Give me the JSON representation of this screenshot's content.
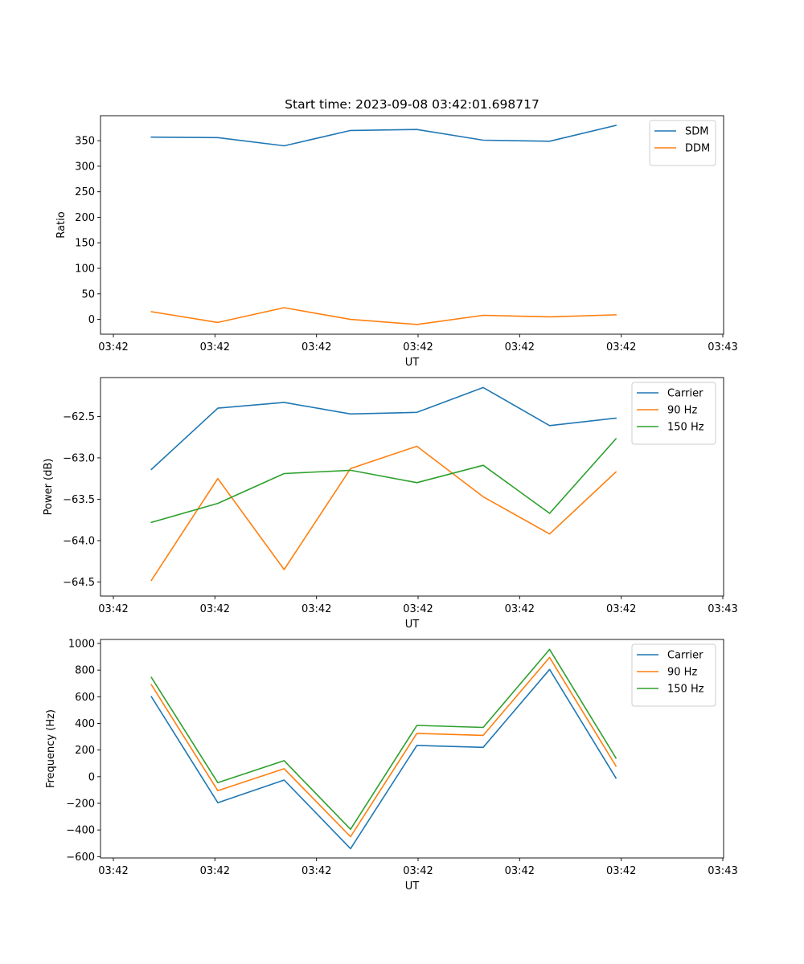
{
  "chart_data": [
    {
      "type": "line",
      "title": "Start time: 2023-09-08 03:42:01.698717",
      "xlabel": "UT",
      "ylabel": "Ratio",
      "xticks": [
        "03:42",
        "03:42",
        "03:42",
        "03:42",
        "03:42",
        "03:42",
        "03:43"
      ],
      "yticks": [
        "0",
        "50",
        "100",
        "150",
        "200",
        "250",
        "300",
        "350"
      ],
      "ylim": [
        -29,
        399
      ],
      "legend": "top-right",
      "x": [
        1,
        2,
        3,
        4,
        5,
        6,
        7,
        8
      ],
      "series": [
        {
          "name": "SDM",
          "color": "#1f77b4",
          "values": [
            357,
            356,
            340,
            370,
            372,
            351,
            349,
            380
          ]
        },
        {
          "name": "DDM",
          "color": "#ff7f0e",
          "values": [
            15,
            -6,
            23,
            0,
            -10,
            8,
            5,
            9
          ]
        }
      ]
    },
    {
      "type": "line",
      "title": "",
      "xlabel": "UT",
      "ylabel": "Power (dB)",
      "xticks": [
        "03:42",
        "03:42",
        "03:42",
        "03:42",
        "03:42",
        "03:42",
        "03:43"
      ],
      "yticks": [
        "−64.5",
        "−64.0",
        "−63.5",
        "−63.0",
        "−62.5"
      ],
      "ylim": [
        -64.67,
        -62.03
      ],
      "legend": "top-right",
      "x": [
        1,
        2,
        3,
        4,
        5,
        6,
        7,
        8
      ],
      "series": [
        {
          "name": "Carrier",
          "color": "#1f77b4",
          "values": [
            -63.14,
            -62.4,
            -62.33,
            -62.47,
            -62.45,
            -62.15,
            -62.61,
            -62.52
          ]
        },
        {
          "name": "90 Hz",
          "color": "#ff7f0e",
          "values": [
            -64.48,
            -63.25,
            -64.35,
            -63.13,
            -62.86,
            -63.47,
            -63.92,
            -63.17
          ]
        },
        {
          "name": "150 Hz",
          "color": "#2ca02c",
          "values": [
            -63.78,
            -63.55,
            -63.19,
            -63.15,
            -63.3,
            -63.09,
            -63.67,
            -62.77
          ]
        }
      ]
    },
    {
      "type": "line",
      "title": "",
      "xlabel": "UT",
      "ylabel": "Frequency (Hz)",
      "xticks": [
        "03:42",
        "03:42",
        "03:42",
        "03:42",
        "03:42",
        "03:42",
        "03:43"
      ],
      "yticks": [
        "−600",
        "−400",
        "−200",
        "0",
        "200",
        "400",
        "600",
        "800",
        "1000"
      ],
      "ylim": [
        -610,
        1030
      ],
      "legend": "top-right",
      "x": [
        1,
        2,
        3,
        4,
        5,
        6,
        7,
        8
      ],
      "series": [
        {
          "name": "Carrier",
          "color": "#1f77b4",
          "values": [
            600,
            -195,
            -25,
            -540,
            235,
            220,
            805,
            -10
          ]
        },
        {
          "name": "90 Hz",
          "color": "#ff7f0e",
          "values": [
            690,
            -105,
            60,
            -450,
            325,
            310,
            895,
            80
          ]
        },
        {
          "name": "150 Hz",
          "color": "#2ca02c",
          "values": [
            745,
            -45,
            120,
            -395,
            385,
            370,
            955,
            140
          ]
        }
      ]
    }
  ]
}
